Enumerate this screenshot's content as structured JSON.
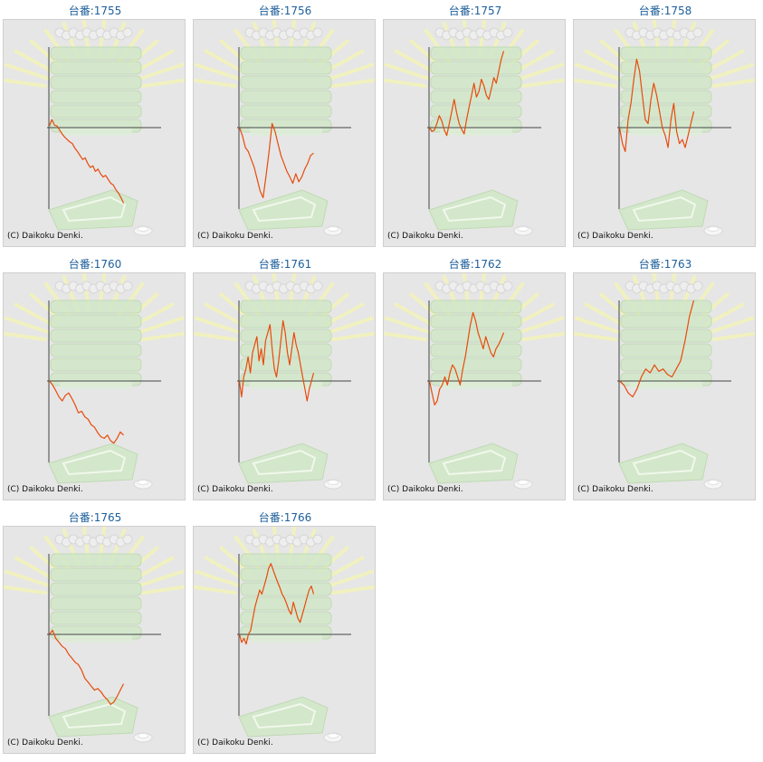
{
  "copyright": "(C) Daikoku Denki.",
  "colors": {
    "title": "#1d5f9a",
    "frame_bg": "#e6e6e6",
    "frame_border": "#cfcfcf",
    "line": "#e84a0c",
    "axis": "#444444",
    "rays": "#f1f1bf",
    "tray": "#d2e8c8"
  },
  "icons": {
    "background": "slot-machine-watermark-icon",
    "coin": "coin-icon"
  },
  "machines": [
    {
      "label": "台番:1755",
      "chart_data": {
        "type": "line",
        "ylim": [
          -100,
          100
        ],
        "values": [
          2,
          10,
          3,
          2,
          -3,
          -8,
          -12,
          -15,
          -18,
          -20,
          -26,
          -30,
          -35,
          -40,
          -38,
          -45,
          -50,
          -48,
          -55,
          -52,
          -58,
          -62,
          -60,
          -65,
          -70,
          -72,
          -78,
          -82,
          -88,
          -95
        ]
      }
    },
    {
      "label": "台番:1756",
      "chart_data": {
        "type": "line",
        "ylim": [
          -100,
          100
        ],
        "values": [
          0,
          -10,
          -25,
          -30,
          -40,
          -50,
          -65,
          -80,
          -88,
          -60,
          -30,
          5,
          -5,
          -20,
          -35,
          -45,
          -55,
          -62,
          -70,
          -58,
          -68,
          -62,
          -52,
          -45,
          -35,
          -32
        ]
      }
    },
    {
      "label": "台番:1757",
      "chart_data": {
        "type": "line",
        "ylim": [
          -100,
          100
        ],
        "values": [
          0,
          -5,
          -3,
          5,
          15,
          8,
          -3,
          -10,
          5,
          20,
          35,
          18,
          5,
          -2,
          -8,
          10,
          25,
          40,
          55,
          38,
          45,
          60,
          52,
          40,
          35,
          48,
          62,
          55,
          70,
          85,
          95
        ]
      }
    },
    {
      "label": "台番:1758",
      "chart_data": {
        "type": "line",
        "ylim": [
          -100,
          100
        ],
        "values": [
          0,
          -20,
          -30,
          10,
          30,
          60,
          85,
          70,
          40,
          10,
          5,
          35,
          55,
          40,
          20,
          0,
          -10,
          -25,
          10,
          30,
          -5,
          -20,
          -15,
          -25,
          -10,
          5,
          20
        ]
      }
    },
    {
      "label": "台番:1760",
      "chart_data": {
        "type": "line",
        "ylim": [
          -100,
          100
        ],
        "values": [
          0,
          -5,
          -12,
          -20,
          -25,
          -18,
          -15,
          -22,
          -30,
          -40,
          -38,
          -45,
          -48,
          -55,
          -58,
          -65,
          -70,
          -72,
          -68,
          -75,
          -78,
          -72,
          -64,
          -68
        ]
      }
    },
    {
      "label": "台番:1761",
      "chart_data": {
        "type": "line",
        "ylim": [
          -100,
          100
        ],
        "values": [
          0,
          -20,
          5,
          15,
          30,
          10,
          35,
          45,
          55,
          25,
          40,
          20,
          50,
          60,
          70,
          40,
          15,
          5,
          25,
          50,
          75,
          60,
          35,
          20,
          40,
          60,
          45,
          35,
          20,
          5,
          -10,
          -25,
          -10,
          0,
          10
        ]
      }
    },
    {
      "label": "台番:1762",
      "chart_data": {
        "type": "line",
        "ylim": [
          -100,
          100
        ],
        "values": [
          0,
          -15,
          -30,
          -25,
          -10,
          -5,
          5,
          -5,
          10,
          20,
          15,
          5,
          -5,
          15,
          30,
          50,
          70,
          85,
          75,
          60,
          50,
          40,
          55,
          45,
          35,
          30,
          40,
          45,
          52,
          60
        ]
      }
    },
    {
      "label": "台番:1763",
      "chart_data": {
        "type": "line",
        "ylim": [
          -100,
          100
        ],
        "values": [
          0,
          -5,
          -15,
          -20,
          -10,
          5,
          15,
          10,
          20,
          12,
          15,
          8,
          5,
          15,
          25,
          50,
          80,
          100
        ]
      }
    },
    {
      "label": "台番:1765",
      "chart_data": {
        "type": "line",
        "ylim": [
          -100,
          100
        ],
        "values": [
          0,
          5,
          -5,
          -10,
          -15,
          -18,
          -25,
          -30,
          -35,
          -38,
          -45,
          -55,
          -60,
          -65,
          -70,
          -68,
          -72,
          -78,
          -82,
          -88,
          -85,
          -78,
          -70,
          -62
        ]
      }
    },
    {
      "label": "台番:1766",
      "chart_data": {
        "type": "line",
        "ylim": [
          -100,
          100
        ],
        "values": [
          0,
          -10,
          -5,
          -12,
          0,
          5,
          20,
          35,
          45,
          55,
          50,
          60,
          70,
          82,
          88,
          80,
          72,
          65,
          58,
          50,
          45,
          38,
          30,
          25,
          40,
          30,
          20,
          15,
          25,
          35,
          45,
          55,
          60,
          50
        ]
      }
    }
  ]
}
